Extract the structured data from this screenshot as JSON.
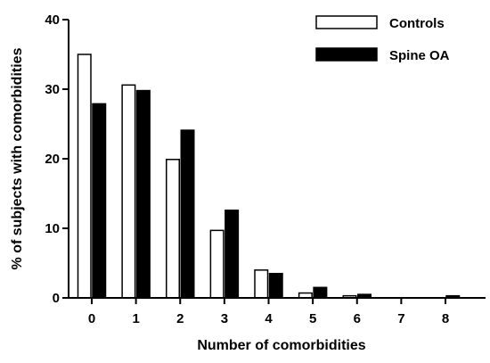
{
  "chart_data": {
    "type": "bar",
    "title": "",
    "xlabel": "Number of comorbidities",
    "ylabel": "% of subjects with comorbidities",
    "ylim": [
      0,
      40
    ],
    "yticks": [
      0,
      10,
      20,
      30,
      40
    ],
    "categories": [
      "0",
      "1",
      "2",
      "3",
      "4",
      "5",
      "6",
      "7",
      "8"
    ],
    "series": [
      {
        "name": "Controls",
        "values": [
          35.0,
          30.6,
          19.9,
          9.7,
          4.0,
          0.7,
          0.3,
          0.0,
          0.0
        ],
        "color": "#ffffff"
      },
      {
        "name": "Spine OA",
        "values": [
          27.9,
          29.8,
          24.1,
          12.6,
          3.5,
          1.5,
          0.5,
          0.0,
          0.3
        ],
        "color": "#000000"
      }
    ],
    "legend_position": "top-right",
    "grid": false
  }
}
